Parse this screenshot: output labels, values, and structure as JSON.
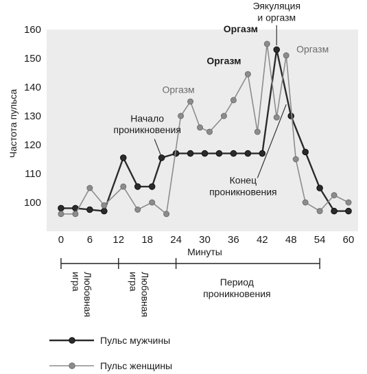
{
  "chart_data": {
    "type": "line",
    "ylabel": "Частота пульса",
    "xlabel": "Минуты",
    "xlim": [
      -3,
      62
    ],
    "ylim": [
      90,
      160
    ],
    "x_ticks": [
      0,
      6,
      12,
      18,
      24,
      30,
      36,
      42,
      48,
      54,
      60
    ],
    "y_ticks": [
      100,
      110,
      120,
      130,
      140,
      150,
      160
    ],
    "grid": false,
    "series": [
      {
        "name": "Пульс мужчины",
        "color": "#2b2b2b",
        "x": [
          0,
          3,
          6,
          9,
          13,
          16,
          19,
          21,
          24,
          27,
          30,
          33,
          36,
          39,
          42,
          45,
          48,
          51,
          54,
          57,
          60
        ],
        "y": [
          98,
          98,
          97.5,
          97,
          115.5,
          105.5,
          105.5,
          115.5,
          117,
          117,
          117,
          117,
          117,
          117,
          117,
          153,
          130,
          117.5,
          105,
          97,
          97
        ]
      },
      {
        "name": "Пульс женщины",
        "color": "#8c8c8c",
        "x": [
          0,
          3,
          6,
          9,
          13,
          16,
          19,
          22,
          25,
          27,
          29,
          31,
          34,
          36,
          39,
          41,
          43,
          45,
          47,
          49,
          51,
          54,
          57,
          60
        ],
        "y": [
          96,
          96,
          105,
          99,
          105.5,
          97.5,
          100,
          96,
          130,
          135,
          126,
          124.5,
          130,
          135.5,
          144.5,
          124.5,
          155,
          129.5,
          151,
          115,
          100,
          97,
          102.5,
          100
        ]
      }
    ],
    "annotations": [
      {
        "text": "Эякуляция",
        "x": 45,
        "y": 167,
        "weight": "normal"
      },
      {
        "text": "и оргазм",
        "x": 45,
        "y": 163,
        "weight": "normal"
      },
      {
        "text": "Оргазм",
        "x": 37.5,
        "y": 159,
        "weight": "bold"
      },
      {
        "text": "Оргазм",
        "x": 52.5,
        "y": 152,
        "weight": "normal"
      },
      {
        "text": "Оргазм",
        "x": 34,
        "y": 148,
        "weight": "bold"
      },
      {
        "text": "Оргазм",
        "x": 24.5,
        "y": 138,
        "weight": "normal"
      },
      {
        "text": "Начало",
        "x": 18,
        "y": 128,
        "weight": "normal"
      },
      {
        "text": "проникновения",
        "x": 18,
        "y": 124,
        "weight": "normal"
      },
      {
        "text": "Конец",
        "x": 38,
        "y": 106.5,
        "weight": "normal"
      },
      {
        "text": "проникновения",
        "x": 38,
        "y": 102.5,
        "weight": "normal"
      }
    ],
    "phases": [
      {
        "label": [
          "Любовная",
          "игра"
        ],
        "start": 0,
        "end": 12
      },
      {
        "label": [
          "Любовная",
          "игра"
        ],
        "start": 12,
        "end": 24
      },
      {
        "label": [
          "Период",
          "проникновения"
        ],
        "start": 24,
        "end": 54
      }
    ],
    "legend_position": "bottom-left"
  }
}
